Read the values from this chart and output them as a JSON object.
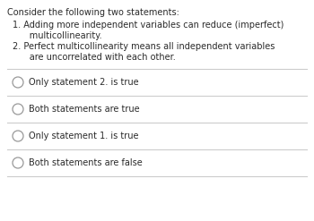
{
  "background_color": "#ffffff",
  "title_text": "Consider the following two statements:",
  "statement1_line1": "1. Adding more independent variables can reduce (imperfect)",
  "statement1_line2": "      multicollinearity.",
  "statement2_line1": "2. Perfect multicollinearity means all independent variables",
  "statement2_line2": "      are uncorrelated with each other.",
  "options": [
    "Only statement 2. is true",
    "Both statements are true",
    "Only statement 1. is true",
    "Both statements are false"
  ],
  "text_color": "#2a2a2a",
  "circle_color": "#999999",
  "line_color": "#cccccc",
  "font_size_title": 7.0,
  "font_size_body": 7.0,
  "font_size_options": 7.0
}
